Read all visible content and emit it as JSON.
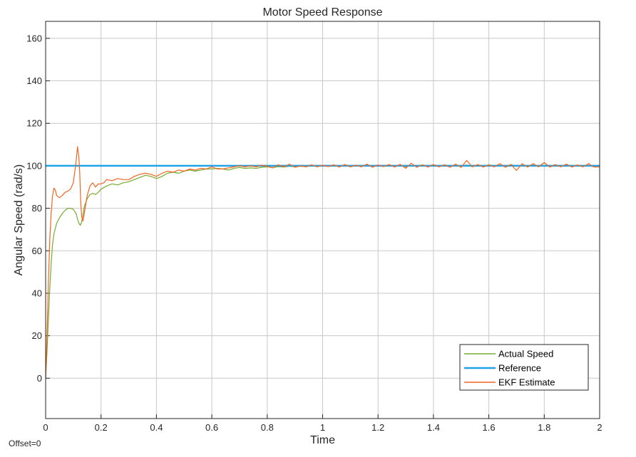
{
  "chart_data": {
    "type": "line",
    "title": "Motor Speed Response",
    "xlabel": "Time",
    "ylabel": "Angular Speed (rad/s)",
    "xlim": [
      0,
      2
    ],
    "ylim": [
      -19,
      168
    ],
    "xticks": [
      0,
      0.2,
      0.4,
      0.6,
      0.8,
      1,
      1.2,
      1.4,
      1.6,
      1.8,
      2
    ],
    "xtick_labels": [
      "0",
      "0.2",
      "0.4",
      "0.6",
      "0.8",
      "1",
      "1.2",
      "1.4",
      "1.6",
      "1.8",
      "2"
    ],
    "yticks": [
      0,
      20,
      40,
      60,
      80,
      100,
      120,
      140,
      160
    ],
    "ytick_labels": [
      "0",
      "20",
      "40",
      "60",
      "80",
      "100",
      "120",
      "140",
      "160"
    ],
    "grid": true,
    "legend_position": "bottom-right",
    "footer_text": "Offset=0",
    "series": [
      {
        "name": "Actual Speed",
        "color": "#77ac30",
        "x": [
          0,
          0.005,
          0.01,
          0.015,
          0.02,
          0.025,
          0.03,
          0.04,
          0.05,
          0.06,
          0.07,
          0.08,
          0.09,
          0.1,
          0.11,
          0.115,
          0.12,
          0.125,
          0.13,
          0.135,
          0.14,
          0.15,
          0.16,
          0.17,
          0.18,
          0.19,
          0.2,
          0.22,
          0.24,
          0.26,
          0.28,
          0.3,
          0.32,
          0.34,
          0.36,
          0.38,
          0.4,
          0.42,
          0.44,
          0.46,
          0.48,
          0.5,
          0.52,
          0.54,
          0.56,
          0.58,
          0.6,
          0.62,
          0.64,
          0.66,
          0.68,
          0.7,
          0.72,
          0.74,
          0.76,
          0.78,
          0.8,
          0.82,
          0.84,
          0.86,
          0.88,
          0.9,
          0.92,
          0.94,
          0.96,
          0.98,
          1.0,
          1.02,
          1.04,
          1.06,
          1.08,
          1.1,
          1.12,
          1.14,
          1.16,
          1.18,
          1.2,
          1.22,
          1.24,
          1.26,
          1.28,
          1.3,
          1.32,
          1.34,
          1.36,
          1.38,
          1.4,
          1.42,
          1.44,
          1.46,
          1.48,
          1.5,
          1.52,
          1.54,
          1.56,
          1.58,
          1.6,
          1.62,
          1.64,
          1.66,
          1.68,
          1.7,
          1.72,
          1.74,
          1.76,
          1.78,
          1.8,
          1.82,
          1.84,
          1.86,
          1.88,
          1.9,
          1.92,
          1.94,
          1.96,
          1.98,
          2.0
        ],
        "y": [
          0,
          12,
          28,
          42,
          54,
          63,
          68,
          73,
          75.5,
          77.5,
          79,
          80,
          80,
          79.5,
          77.5,
          75,
          73,
          72,
          73.5,
          77,
          81,
          84.5,
          86.5,
          87,
          86.5,
          87.5,
          89,
          90.5,
          91.5,
          91,
          92,
          92.5,
          93.5,
          94.5,
          95.5,
          95,
          94,
          95,
          96.5,
          97,
          96.5,
          97.5,
          98,
          97.5,
          98,
          98.5,
          98.5,
          98.8,
          98.5,
          98,
          98.8,
          99.2,
          98.8,
          99,
          98.8,
          99.3,
          99.5,
          99.2,
          99.6,
          99.4,
          99.8,
          99.5,
          99.8,
          99.6,
          100,
          99.8,
          100.2,
          99.7,
          100.1,
          99.8,
          100.3,
          99.6,
          100.1,
          99.8,
          100.4,
          99.6,
          100.2,
          99.7,
          100.3,
          99.8,
          100.5,
          99.5,
          100.2,
          99.7,
          100.4,
          99.8,
          100.3,
          99.6,
          100.5,
          99.7,
          100.2,
          99.8,
          100.4,
          99.6,
          100.3,
          99.7,
          100.5,
          99.8,
          100.3,
          99.6,
          100.6,
          99.7,
          100.2,
          99.8,
          100.4,
          99.6,
          101.5,
          99.5,
          100.2,
          99.7,
          100.6,
          99.6,
          100.3,
          99.8,
          100.2,
          99.5,
          100
        ]
      },
      {
        "name": "Reference",
        "color": "#1ea3e6",
        "x": [
          0,
          2
        ],
        "y": [
          100,
          100
        ]
      },
      {
        "name": "EKF Estimate",
        "color": "#f26522",
        "x": [
          0,
          0.005,
          0.01,
          0.015,
          0.02,
          0.025,
          0.03,
          0.035,
          0.04,
          0.05,
          0.06,
          0.07,
          0.08,
          0.09,
          0.1,
          0.105,
          0.11,
          0.115,
          0.12,
          0.123,
          0.126,
          0.13,
          0.135,
          0.14,
          0.15,
          0.16,
          0.17,
          0.18,
          0.19,
          0.2,
          0.21,
          0.22,
          0.24,
          0.26,
          0.28,
          0.3,
          0.32,
          0.34,
          0.36,
          0.38,
          0.4,
          0.42,
          0.44,
          0.46,
          0.48,
          0.5,
          0.52,
          0.54,
          0.56,
          0.58,
          0.6,
          0.62,
          0.64,
          0.66,
          0.68,
          0.7,
          0.72,
          0.74,
          0.76,
          0.78,
          0.8,
          0.82,
          0.84,
          0.86,
          0.88,
          0.9,
          0.92,
          0.94,
          0.96,
          0.98,
          1.0,
          1.02,
          1.04,
          1.06,
          1.08,
          1.1,
          1.12,
          1.14,
          1.16,
          1.18,
          1.2,
          1.22,
          1.24,
          1.26,
          1.28,
          1.3,
          1.32,
          1.34,
          1.36,
          1.38,
          1.4,
          1.42,
          1.44,
          1.46,
          1.48,
          1.5,
          1.52,
          1.54,
          1.56,
          1.58,
          1.6,
          1.62,
          1.64,
          1.66,
          1.68,
          1.7,
          1.72,
          1.74,
          1.76,
          1.78,
          1.8,
          1.82,
          1.84,
          1.86,
          1.88,
          1.9,
          1.92,
          1.94,
          1.96,
          1.98,
          2.0
        ],
        "y": [
          0,
          20,
          45,
          65,
          78,
          86,
          89.5,
          88.5,
          86,
          85,
          86,
          87.5,
          88,
          89,
          92,
          97,
          102,
          109,
          104,
          97,
          85,
          76,
          74,
          78,
          86,
          90.5,
          92,
          90,
          91.5,
          91.5,
          92,
          93.5,
          93,
          94,
          93.5,
          93.5,
          95,
          96,
          96.5,
          96,
          95,
          96.5,
          97.5,
          97,
          98,
          97.5,
          98.5,
          98,
          98.8,
          98.5,
          99.5,
          98.5,
          98.5,
          99,
          99.5,
          100,
          99.5,
          100,
          99.5,
          100.3,
          99.8,
          99,
          100.5,
          99.5,
          100.8,
          99.3,
          100,
          99.5,
          100.5,
          99.5,
          100.3,
          99.6,
          100.5,
          99.4,
          100.6,
          99.5,
          100.3,
          99.5,
          100.8,
          99.3,
          100.4,
          99.6,
          100.6,
          99.4,
          100.7,
          98.8,
          101.2,
          99.3,
          100.5,
          99.4,
          100.6,
          99.5,
          100.4,
          99.3,
          100.8,
          99.2,
          102.5,
          99.5,
          100.6,
          99.4,
          100.4,
          99.5,
          101.0,
          99.3,
          100.6,
          97.8,
          101.0,
          99.4,
          101.0,
          99.5,
          101.5,
          99.4,
          100.6,
          99.5,
          100.8,
          99.4,
          100.4,
          99.5,
          101.0,
          99.4,
          99.5
        ]
      }
    ]
  }
}
